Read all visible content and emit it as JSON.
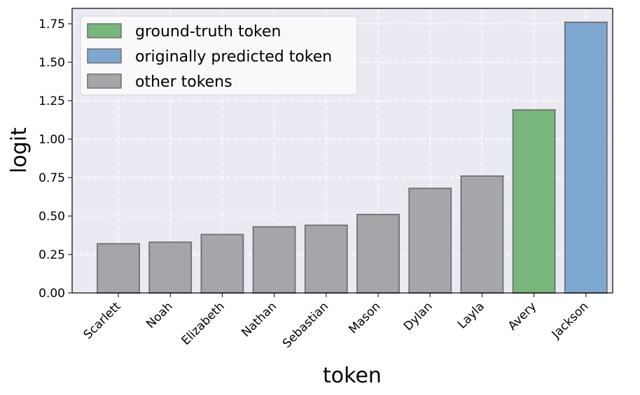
{
  "chart_data": {
    "type": "bar",
    "xlabel": "token",
    "ylabel": "logit",
    "categories": [
      "Scarlett",
      "Noah",
      "Elizabeth",
      "Nathan",
      "Sebastian",
      "Mason",
      "Dylan",
      "Layla",
      "Avery",
      "Jackson"
    ],
    "values": [
      0.32,
      0.33,
      0.38,
      0.43,
      0.44,
      0.51,
      0.68,
      0.76,
      1.19,
      1.76
    ],
    "groups": [
      "other",
      "other",
      "other",
      "other",
      "other",
      "other",
      "other",
      "other",
      "ground_truth",
      "predicted"
    ],
    "ylim": [
      0,
      1.85
    ],
    "yticks": [
      "0.00",
      "0.25",
      "0.50",
      "0.75",
      "1.00",
      "1.25",
      "1.50",
      "1.75"
    ],
    "grid": true,
    "legend_position": "top-left",
    "legend": [
      {
        "key": "ground_truth",
        "label": "ground-truth token",
        "color": "#77b77b"
      },
      {
        "key": "predicted",
        "label": "originally predicted token",
        "color": "#7fa8d1"
      },
      {
        "key": "other",
        "label": "other tokens",
        "color": "#a6a5aa"
      }
    ],
    "colors": {
      "background": "#eaeaf2",
      "bar_edge": "#707070",
      "other": "#a6a5aa",
      "ground_truth": "#77b77b",
      "predicted": "#7fa8d1"
    }
  }
}
